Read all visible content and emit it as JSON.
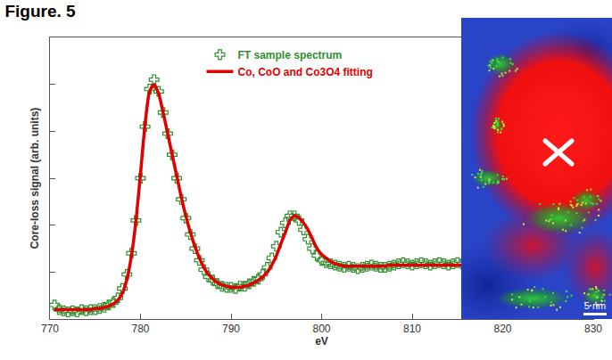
{
  "chart_data": {
    "type": "line",
    "title": "Figure. 5",
    "x_label": "eV",
    "y_label": "Core-loss signal (arb. units)",
    "x": [
      770.5,
      771,
      771.5,
      772,
      772.5,
      773,
      773.5,
      774,
      774.5,
      775,
      775.5,
      776,
      776.5,
      777,
      777.5,
      778,
      778.5,
      779,
      779.5,
      780,
      780.5,
      781,
      781.5,
      782,
      782.5,
      783,
      783.5,
      784,
      784.5,
      785,
      785.5,
      786,
      786.5,
      787,
      787.5,
      788,
      788.5,
      789,
      789.5,
      790,
      790.5,
      791,
      791.5,
      792,
      792.5,
      793,
      793.5,
      794,
      794.5,
      795,
      795.5,
      796,
      796.5,
      797,
      797.5,
      798,
      798.5,
      799,
      799.5,
      800,
      800.5,
      801,
      801.5,
      802,
      802.5,
      803,
      803.5,
      804,
      804.5,
      805,
      805.5,
      806,
      806.5,
      807,
      807.5,
      808,
      808.5,
      809,
      809.5,
      810,
      810.5,
      811,
      811.5,
      812,
      812.5,
      813,
      813.5,
      814,
      814.5,
      815,
      815.5
    ],
    "series": [
      {
        "name": "FT sample spectrum",
        "color": "#2f8f2f",
        "type": "scatter",
        "marker": "cross-open",
        "values": [
          0.06,
          0.04,
          0.035,
          0.03,
          0.035,
          0.03,
          0.04,
          0.035,
          0.04,
          0.04,
          0.045,
          0.05,
          0.06,
          0.07,
          0.09,
          0.13,
          0.19,
          0.28,
          0.42,
          0.6,
          0.82,
          0.98,
          1.02,
          0.97,
          0.88,
          0.79,
          0.7,
          0.6,
          0.51,
          0.43,
          0.36,
          0.3,
          0.25,
          0.21,
          0.18,
          0.165,
          0.15,
          0.14,
          0.135,
          0.135,
          0.13,
          0.14,
          0.14,
          0.15,
          0.16,
          0.17,
          0.19,
          0.22,
          0.26,
          0.31,
          0.37,
          0.41,
          0.44,
          0.44,
          0.42,
          0.38,
          0.34,
          0.3,
          0.27,
          0.25,
          0.24,
          0.235,
          0.23,
          0.225,
          0.22,
          0.225,
          0.22,
          0.215,
          0.22,
          0.225,
          0.23,
          0.225,
          0.22,
          0.22,
          0.225,
          0.23,
          0.235,
          0.24,
          0.235,
          0.23,
          0.235,
          0.24,
          0.235,
          0.23,
          0.235,
          0.24,
          0.235,
          0.23,
          0.235,
          0.24,
          0.235
        ]
      },
      {
        "name": "Co, CoO and Co3O4 fitting",
        "color": "#e00000",
        "type": "line",
        "line_style": "solid",
        "values": [
          0.04,
          0.04,
          0.04,
          0.04,
          0.04,
          0.04,
          0.04,
          0.04,
          0.04,
          0.045,
          0.045,
          0.05,
          0.055,
          0.065,
          0.08,
          0.11,
          0.17,
          0.27,
          0.42,
          0.62,
          0.83,
          0.97,
          1.0,
          0.96,
          0.88,
          0.79,
          0.7,
          0.61,
          0.52,
          0.44,
          0.37,
          0.31,
          0.26,
          0.22,
          0.19,
          0.17,
          0.155,
          0.145,
          0.14,
          0.135,
          0.135,
          0.135,
          0.14,
          0.145,
          0.155,
          0.165,
          0.18,
          0.2,
          0.23,
          0.27,
          0.32,
          0.37,
          0.42,
          0.44,
          0.43,
          0.41,
          0.38,
          0.34,
          0.3,
          0.275,
          0.26,
          0.245,
          0.235,
          0.23,
          0.225,
          0.225,
          0.225,
          0.225,
          0.225,
          0.225,
          0.225,
          0.225,
          0.225,
          0.225,
          0.23,
          0.23,
          0.23,
          0.23,
          0.23,
          0.23,
          0.23,
          0.23,
          0.23,
          0.23,
          0.23,
          0.23,
          0.23,
          0.23,
          0.23,
          0.23,
          0.23
        ]
      }
    ],
    "xlim": [
      770,
      830
    ],
    "xticks": [
      770,
      780,
      790,
      800,
      810,
      820,
      830
    ],
    "ylim": [
      0,
      1.2
    ],
    "yticks": [
      0.2,
      0.4,
      0.6,
      0.8,
      1.0
    ],
    "tick_labels": "x",
    "grid": false,
    "legend": "top",
    "annotations": [
      {
        "text": "5 nm"
      }
    ]
  }
}
